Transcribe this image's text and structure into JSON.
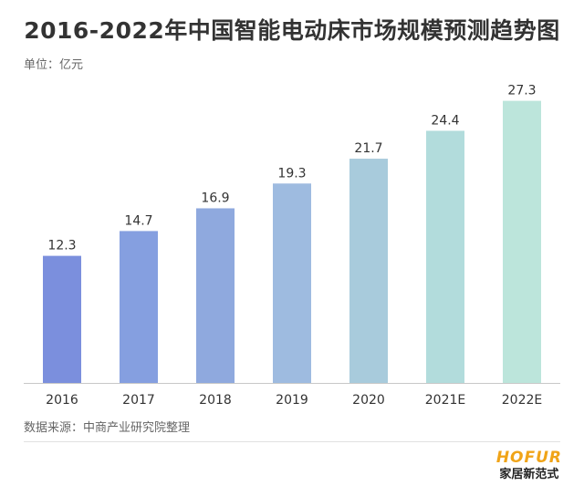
{
  "title": "2016-2022年中国智能电动床市场规模预测趋势图",
  "unit": "单位：亿元",
  "source": "数据来源：中商产业研究院整理",
  "brand": {
    "logo": "HOFUR",
    "name": "家居新范式"
  },
  "chart_data": {
    "type": "bar",
    "categories": [
      "2016",
      "2017",
      "2018",
      "2019",
      "2020",
      "2021E",
      "2022E"
    ],
    "values": [
      12.3,
      14.7,
      16.9,
      19.3,
      21.7,
      24.4,
      27.3
    ],
    "data_labels": [
      "12.3",
      "14.7",
      "16.9",
      "19.3",
      "21.7",
      "24.4",
      "27.3"
    ],
    "ylim": [
      0,
      30
    ],
    "grid": false,
    "bar_colors": [
      "#7b8fdd",
      "#859fe0",
      "#8fa9de",
      "#9ebbe0",
      "#a8cbdc",
      "#b2dcdc",
      "#bce5db"
    ]
  }
}
